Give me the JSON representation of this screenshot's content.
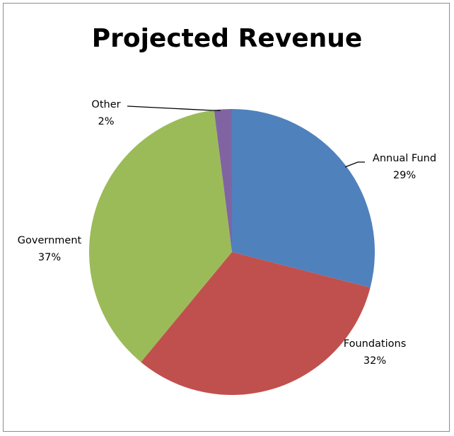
{
  "chart_data": {
    "type": "pie",
    "title": "Projected Revenue",
    "categories": [
      "Annual Fund",
      "Foundations",
      "Government",
      "Other"
    ],
    "values": [
      29,
      32,
      37,
      2
    ],
    "percent_labels": [
      "29%",
      "32%",
      "37%",
      "2%"
    ],
    "colors": [
      "#4f81bd",
      "#c0504d",
      "#9bbb59",
      "#8064a2"
    ],
    "start_angle_deg": 0,
    "direction": "clockwise",
    "legend": "none"
  }
}
